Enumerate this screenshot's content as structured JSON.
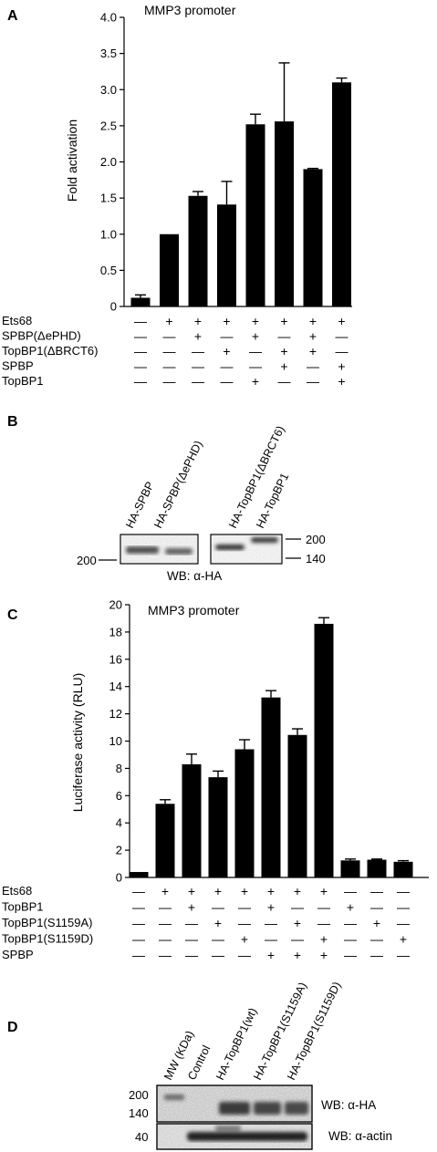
{
  "panel_a": {
    "label": "A",
    "rows": [
      "Ets68",
      "SPBP(ΔePHD)",
      "TopBP1(ΔBRCT6)",
      "SPBP",
      "TopBP1"
    ],
    "matrix": [
      [
        "—",
        "+",
        "+",
        "+",
        "+",
        "+",
        "+",
        "+"
      ],
      [
        "—",
        "—",
        "+",
        "—",
        "+",
        "—",
        "+",
        "—"
      ],
      [
        "—",
        "—",
        "—",
        "+",
        "—",
        "+",
        "+",
        "—"
      ],
      [
        "—",
        "—",
        "—",
        "—",
        "—",
        "+",
        "—",
        "+"
      ],
      [
        "—",
        "—",
        "—",
        "—",
        "+",
        "—",
        "—",
        "+"
      ]
    ]
  },
  "panel_b": {
    "label": "B",
    "lanes": [
      "HA-SPBP",
      "HA-SPBP(ΔePHD)",
      "HA-TopBP1(ΔBRCT6)",
      "HA-TopBP1"
    ],
    "mw_left": "200",
    "mw_right": [
      "200",
      "140"
    ],
    "caption": "WB: α-HA"
  },
  "panel_c": {
    "label": "C",
    "rows": [
      "Ets68",
      "TopBP1",
      "TopBP1(S1159A)",
      "TopBP1(S1159D)",
      "SPBP"
    ],
    "matrix": [
      [
        "—",
        "+",
        "+",
        "+",
        "+",
        "+",
        "+",
        "+",
        "—",
        "—",
        "—"
      ],
      [
        "—",
        "—",
        "+",
        "—",
        "—",
        "+",
        "—",
        "—",
        "+",
        "—",
        "—"
      ],
      [
        "—",
        "—",
        "—",
        "+",
        "—",
        "—",
        "+",
        "—",
        "—",
        "+",
        "—"
      ],
      [
        "—",
        "—",
        "—",
        "—",
        "+",
        "—",
        "—",
        "+",
        "—",
        "—",
        "+"
      ],
      [
        "—",
        "—",
        "—",
        "—",
        "—",
        "+",
        "+",
        "+",
        "—",
        "—",
        "—"
      ]
    ]
  },
  "panel_d": {
    "label": "D",
    "lanes": [
      "MW (KDa)",
      "Control",
      "HA-TopBP1(wt)",
      "HA-TopBP1(S1159A)",
      "HA-TopBP1(S1159D)"
    ],
    "mw": [
      "200",
      "140",
      "40"
    ],
    "blot1_label": "WB: α-HA",
    "blot2_label": "WB: α-actin"
  },
  "chart_data": [
    {
      "type": "bar",
      "title": "MMP3 promoter",
      "xlabel": "",
      "ylabel": "Fold activation",
      "ylim": [
        0,
        4.0
      ],
      "yticks": [
        "0",
        "0.5",
        "1.0",
        "1.5",
        "2.0",
        "2.5",
        "3.0",
        "3.5",
        "4.0"
      ],
      "values": [
        0.12,
        1.0,
        1.53,
        1.41,
        2.52,
        2.56,
        1.9,
        3.1
      ],
      "errors": [
        0.04,
        0.0,
        0.06,
        0.32,
        0.14,
        0.81,
        0.01,
        0.06
      ],
      "grid": false
    },
    {
      "type": "bar",
      "title": "MMP3 promoter",
      "xlabel": "",
      "ylabel": "Luciferase activity (RLU)",
      "ylim": [
        0,
        20
      ],
      "yticks": [
        "0",
        "2",
        "4",
        "6",
        "8",
        "10",
        "12",
        "14",
        "16",
        "18",
        "20"
      ],
      "values": [
        0.4,
        5.4,
        8.3,
        7.35,
        9.4,
        13.2,
        10.45,
        18.6,
        1.25,
        1.3,
        1.15
      ],
      "errors": [
        0.0,
        0.3,
        0.75,
        0.45,
        0.7,
        0.5,
        0.45,
        0.45,
        0.1,
        0.05,
        0.08
      ],
      "grid": false
    }
  ]
}
